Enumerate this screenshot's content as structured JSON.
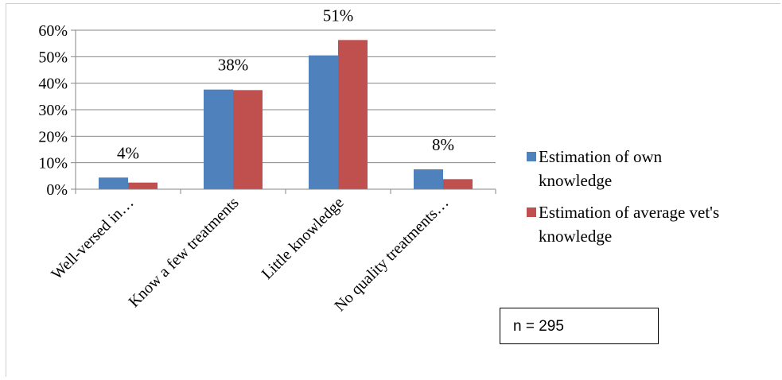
{
  "chart_data": {
    "type": "bar",
    "title": "",
    "xlabel": "",
    "ylabel": "",
    "categories": [
      "Well-versed in…",
      "Know a few treatments",
      "Little knowledge",
      "No quality treatments…"
    ],
    "series": [
      {
        "name": "Estimation of own knowledge",
        "color": "#4f81bd",
        "values": [
          4.4,
          37.6,
          50.5,
          7.5
        ]
      },
      {
        "name": "Estimation of average vet's knowledge",
        "color": "#c0504d",
        "values": [
          2.5,
          37.4,
          56.3,
          3.8
        ]
      }
    ],
    "data_labels": [
      "4%",
      "38%",
      "51%",
      "8%"
    ],
    "ylim": [
      0,
      60
    ],
    "yticks": [
      0,
      10,
      20,
      30,
      40,
      50,
      60
    ],
    "ytick_labels": [
      "0%",
      "10%",
      "20%",
      "30%",
      "40%",
      "50%",
      "60%"
    ],
    "grid": true,
    "legend_position": "right",
    "legend": [
      {
        "lines": [
          "Estimation of own",
          "knowledge"
        ]
      },
      {
        "lines": [
          "Estimation of average vet's",
          "knowledge"
        ]
      }
    ]
  },
  "annotation": {
    "text": "n = 295"
  }
}
